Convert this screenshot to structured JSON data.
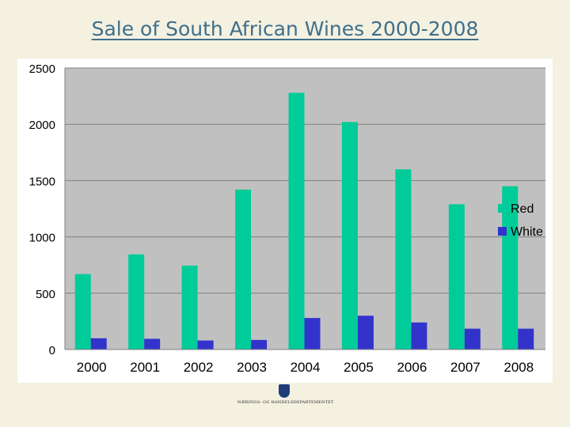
{
  "page": {
    "title": "Sale of South African Wines 2000-2008"
  },
  "logo": {
    "text": "NÆRINGS- OG HANDELSDEPARTEMENTET"
  },
  "colors": {
    "background": "#f4f1e1",
    "plot_area": "#c0c0c0",
    "red_series": "#00cc99",
    "white_series": "#3333cc",
    "title": "#3f6f8a"
  },
  "chart_data": {
    "type": "bar",
    "title": "Sale of South African Wines 2000-2008",
    "xlabel": "",
    "ylabel": "",
    "categories": [
      "2000",
      "2001",
      "2002",
      "2003",
      "2004",
      "2005",
      "2006",
      "2007",
      "2008"
    ],
    "series": [
      {
        "name": "Red",
        "color": "#00cc99",
        "values": [
          670,
          845,
          745,
          1420,
          2280,
          2020,
          1600,
          1290,
          1450
        ]
      },
      {
        "name": "White",
        "color": "#3333cc",
        "values": [
          100,
          95,
          80,
          85,
          280,
          300,
          240,
          185,
          185
        ]
      }
    ],
    "ylim": [
      0,
      2500
    ],
    "yticks": [
      "0",
      "500",
      "1000",
      "1500",
      "2000",
      "2500"
    ],
    "grid": true,
    "legend_position": "right"
  }
}
